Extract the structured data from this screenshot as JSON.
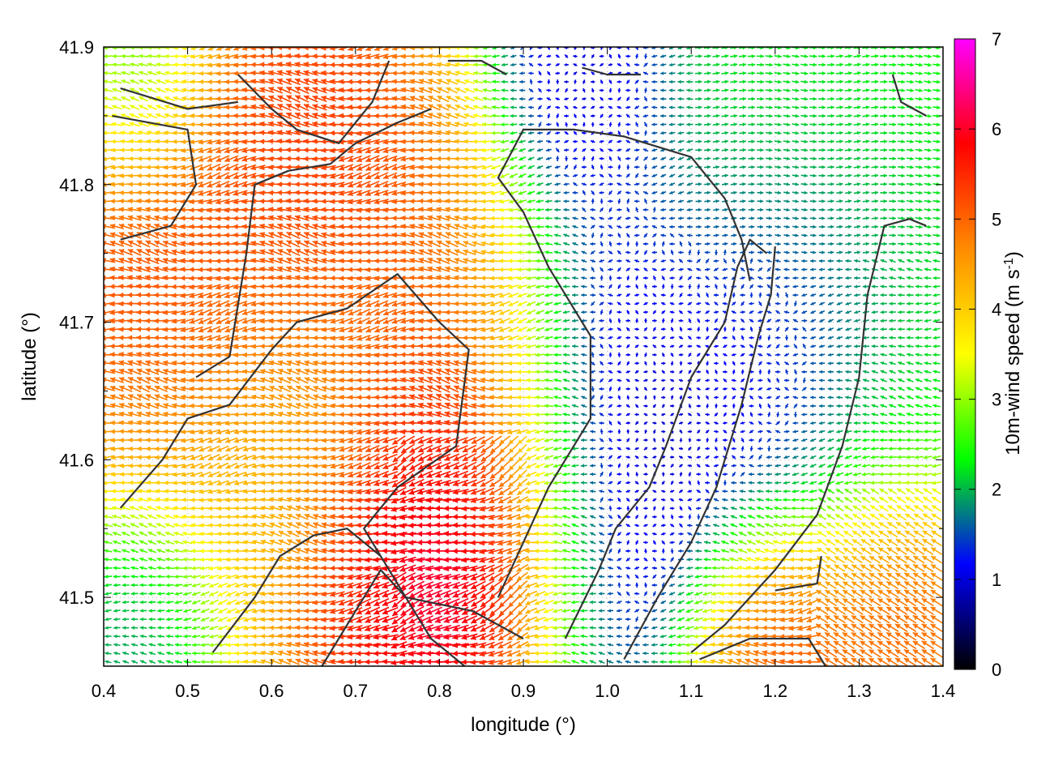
{
  "chart_data": {
    "type": "vector-field",
    "title": "",
    "xlabel": "longitude (°)",
    "ylabel": "latitude (°)",
    "xlim": [
      0.4,
      1.4
    ],
    "ylim": [
      41.45,
      41.9
    ],
    "xticks": [
      "0.4",
      "0.5",
      "0.6",
      "0.7",
      "0.8",
      "0.9",
      "1.0",
      "1.1",
      "1.2",
      "1.3",
      "1.4"
    ],
    "yticks": [
      "41.5",
      "41.6",
      "41.7",
      "41.8",
      "41.9"
    ],
    "colorbar": {
      "label_main": "10m-wind speed (m s",
      "label_sup": "-1",
      "label_end": ")",
      "ticks": [
        "0",
        "1",
        "2",
        "3",
        "4",
        "5",
        "6",
        "7"
      ],
      "range": [
        0,
        7
      ],
      "colors": [
        "#000000",
        "#0000ff",
        "#00ff00",
        "#ffff00",
        "#ff8c00",
        "#ff0000",
        "#ff00ff"
      ]
    },
    "grid": "dotted",
    "contour_color": "#333333",
    "speed_regions": [
      {
        "lon": 0.45,
        "lat": 41.74,
        "speed": 5.6,
        "radius": 0.09
      },
      {
        "lon": 0.55,
        "lat": 41.76,
        "speed": 5.2,
        "radius": 0.08
      },
      {
        "lon": 0.65,
        "lat": 41.82,
        "speed": 5.8,
        "radius": 0.09
      },
      {
        "lon": 0.78,
        "lat": 41.68,
        "speed": 5.2,
        "radius": 0.09
      },
      {
        "lon": 0.82,
        "lat": 41.56,
        "speed": 7.0,
        "radius": 0.08
      },
      {
        "lon": 0.76,
        "lat": 41.5,
        "speed": 6.6,
        "radius": 0.06
      },
      {
        "lon": 0.7,
        "lat": 41.47,
        "speed": 5.5,
        "radius": 0.06
      },
      {
        "lon": 0.6,
        "lat": 41.6,
        "speed": 4.2,
        "radius": 0.1
      },
      {
        "lon": 1.02,
        "lat": 41.62,
        "speed": 0.6,
        "radius": 0.1
      },
      {
        "lon": 1.2,
        "lat": 41.7,
        "speed": 0.9,
        "radius": 0.08
      },
      {
        "lon": 0.98,
        "lat": 41.88,
        "speed": 0.7,
        "radius": 0.06
      },
      {
        "lon": 1.2,
        "lat": 41.85,
        "speed": 2.3,
        "radius": 0.1
      },
      {
        "lon": 1.35,
        "lat": 41.66,
        "speed": 2.2,
        "radius": 0.08
      },
      {
        "lon": 1.36,
        "lat": 41.5,
        "speed": 5.5,
        "radius": 0.06
      },
      {
        "lon": 1.2,
        "lat": 41.46,
        "speed": 5.6,
        "radius": 0.06
      },
      {
        "lon": 0.45,
        "lat": 41.48,
        "speed": 1.6,
        "radius": 0.05
      },
      {
        "lon": 0.45,
        "lat": 41.87,
        "speed": 2.0,
        "radius": 0.05
      }
    ],
    "contours": [
      [
        [
          0.41,
          41.85
        ],
        [
          0.5,
          41.84
        ],
        [
          0.51,
          41.8
        ],
        [
          0.48,
          41.77
        ],
        [
          0.42,
          41.76
        ]
      ],
      [
        [
          0.42,
          41.565
        ],
        [
          0.47,
          41.6
        ],
        [
          0.5,
          41.63
        ],
        [
          0.55,
          41.64
        ],
        [
          0.6,
          41.68
        ],
        [
          0.63,
          41.7
        ],
        [
          0.69,
          41.71
        ],
        [
          0.75,
          41.735
        ],
        [
          0.8,
          41.7
        ],
        [
          0.835,
          41.68
        ],
        [
          0.82,
          41.61
        ],
        [
          0.75,
          41.58
        ],
        [
          0.71,
          41.55
        ],
        [
          0.74,
          41.52
        ],
        [
          0.79,
          41.47
        ],
        [
          0.83,
          41.45
        ]
      ],
      [
        [
          0.51,
          41.66
        ],
        [
          0.55,
          41.675
        ],
        [
          0.57,
          41.75
        ],
        [
          0.58,
          41.8
        ],
        [
          0.62,
          41.81
        ],
        [
          0.67,
          41.815
        ],
        [
          0.7,
          41.83
        ],
        [
          0.75,
          41.845
        ],
        [
          0.79,
          41.855
        ]
      ],
      [
        [
          0.56,
          41.88
        ],
        [
          0.6,
          41.855
        ],
        [
          0.63,
          41.84
        ],
        [
          0.68,
          41.83
        ],
        [
          0.72,
          41.86
        ],
        [
          0.74,
          41.89
        ]
      ],
      [
        [
          0.42,
          41.87
        ],
        [
          0.5,
          41.855
        ],
        [
          0.56,
          41.86
        ]
      ],
      [
        [
          0.53,
          41.46
        ],
        [
          0.58,
          41.5
        ],
        [
          0.61,
          41.53
        ],
        [
          0.65,
          41.545
        ],
        [
          0.69,
          41.55
        ],
        [
          0.73,
          41.53
        ]
      ],
      [
        [
          0.66,
          41.45
        ],
        [
          0.7,
          41.49
        ],
        [
          0.73,
          41.52
        ],
        [
          0.76,
          41.5
        ],
        [
          0.84,
          41.49
        ],
        [
          0.9,
          41.47
        ]
      ],
      [
        [
          0.87,
          41.5
        ],
        [
          0.9,
          41.54
        ],
        [
          0.93,
          41.58
        ],
        [
          0.98,
          41.63
        ],
        [
          0.98,
          41.69
        ],
        [
          0.93,
          41.74
        ],
        [
          0.9,
          41.78
        ],
        [
          0.87,
          41.805
        ],
        [
          0.9,
          41.84
        ],
        [
          0.96,
          41.84
        ],
        [
          1.02,
          41.835
        ],
        [
          1.1,
          41.82
        ],
        [
          1.14,
          41.79
        ],
        [
          1.16,
          41.76
        ],
        [
          1.17,
          41.73
        ]
      ],
      [
        [
          0.95,
          41.47
        ],
        [
          0.99,
          41.52
        ],
        [
          1.01,
          41.55
        ],
        [
          1.05,
          41.58
        ],
        [
          1.07,
          41.61
        ],
        [
          1.1,
          41.66
        ],
        [
          1.14,
          41.7
        ],
        [
          1.155,
          41.74
        ],
        [
          1.17,
          41.76
        ],
        [
          1.19,
          41.75
        ]
      ],
      [
        [
          1.02,
          41.455
        ],
        [
          1.06,
          41.5
        ],
        [
          1.1,
          41.54
        ],
        [
          1.13,
          41.58
        ],
        [
          1.16,
          41.64
        ],
        [
          1.18,
          41.69
        ],
        [
          1.195,
          41.72
        ],
        [
          1.2,
          41.755
        ]
      ],
      [
        [
          1.1,
          41.46
        ],
        [
          1.14,
          41.48
        ],
        [
          1.2,
          41.52
        ],
        [
          1.25,
          41.56
        ],
        [
          1.28,
          41.61
        ],
        [
          1.3,
          41.66
        ],
        [
          1.31,
          41.72
        ],
        [
          1.33,
          41.77
        ],
        [
          1.36,
          41.775
        ],
        [
          1.38,
          41.77
        ]
      ],
      [
        [
          1.2,
          41.505
        ],
        [
          1.25,
          41.51
        ],
        [
          1.255,
          41.53
        ]
      ],
      [
        [
          1.11,
          41.455
        ],
        [
          1.17,
          41.47
        ],
        [
          1.24,
          41.47
        ],
        [
          1.26,
          41.45
        ]
      ],
      [
        [
          1.34,
          41.88
        ],
        [
          1.35,
          41.86
        ],
        [
          1.38,
          41.85
        ]
      ],
      [
        [
          0.81,
          41.89
        ],
        [
          0.85,
          41.89
        ],
        [
          0.88,
          41.88
        ]
      ],
      [
        [
          0.97,
          41.885
        ],
        [
          1.0,
          41.88
        ],
        [
          1.04,
          41.88
        ]
      ]
    ]
  }
}
